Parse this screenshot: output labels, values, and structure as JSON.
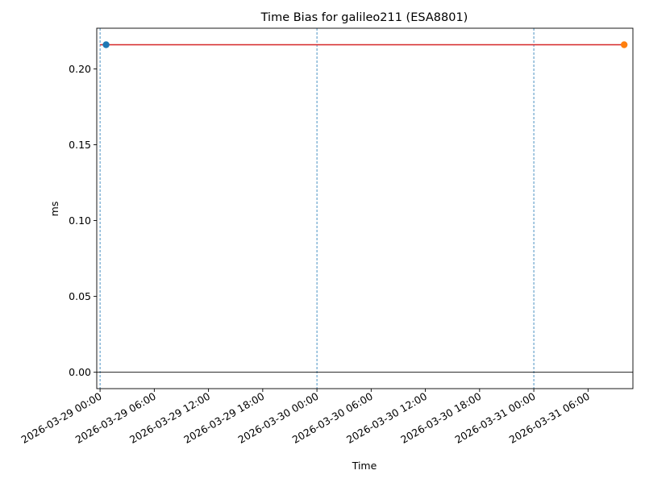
{
  "chart_data": {
    "type": "line",
    "title": "Time Bias for galileo211 (ESA8801)",
    "xlabel": "Time",
    "ylabel": "ms",
    "x_axis_type": "datetime",
    "xlim": [
      "2026-03-28T23:38:00",
      "2026-03-31T10:58:00"
    ],
    "ylim": [
      -0.0108,
      0.2268
    ],
    "x_ticks": [
      {
        "value": "2026-03-29T00:00:00",
        "label": "2026-03-29 00:00"
      },
      {
        "value": "2026-03-29T06:00:00",
        "label": "2026-03-29 06:00"
      },
      {
        "value": "2026-03-29T12:00:00",
        "label": "2026-03-29 12:00"
      },
      {
        "value": "2026-03-29T18:00:00",
        "label": "2026-03-29 18:00"
      },
      {
        "value": "2026-03-30T00:00:00",
        "label": "2026-03-30 00:00"
      },
      {
        "value": "2026-03-30T06:00:00",
        "label": "2026-03-30 06:00"
      },
      {
        "value": "2026-03-30T12:00:00",
        "label": "2026-03-30 12:00"
      },
      {
        "value": "2026-03-30T18:00:00",
        "label": "2026-03-30 18:00"
      },
      {
        "value": "2026-03-31T00:00:00",
        "label": "2026-03-31 00:00"
      },
      {
        "value": "2026-03-31T06:00:00",
        "label": "2026-03-31 06:00"
      }
    ],
    "y_ticks": [
      {
        "value": 0.0,
        "label": "0.00"
      },
      {
        "value": 0.05,
        "label": "0.05"
      },
      {
        "value": 0.1,
        "label": "0.10"
      },
      {
        "value": 0.15,
        "label": "0.15"
      },
      {
        "value": 0.2,
        "label": "0.20"
      }
    ],
    "grid": false,
    "vertical_lines": [
      {
        "x": "2026-03-29T00:00:00",
        "color": "#1f77b4",
        "style": "dashed"
      },
      {
        "x": "2026-03-30T00:00:00",
        "color": "#1f77b4",
        "style": "dashed"
      },
      {
        "x": "2026-03-31T00:00:00",
        "color": "#1f77b4",
        "style": "dashed"
      }
    ],
    "horizontal_lines": [
      {
        "y": 0,
        "color": "#000000",
        "style": "solid"
      }
    ],
    "series": [
      {
        "type": "line",
        "color": "#d62728",
        "x": [
          "2026-03-29T00:00:00",
          "2026-03-31T10:00:00"
        ],
        "y": [
          0.2159,
          0.2159
        ]
      },
      {
        "type": "scatter",
        "color": "#1f77b4",
        "x": [
          "2026-03-29T00:40:00"
        ],
        "y": [
          0.2159
        ]
      },
      {
        "type": "scatter",
        "color": "#ff7f0e",
        "x": [
          "2026-03-31T10:00:00"
        ],
        "y": [
          0.2159
        ]
      }
    ]
  }
}
